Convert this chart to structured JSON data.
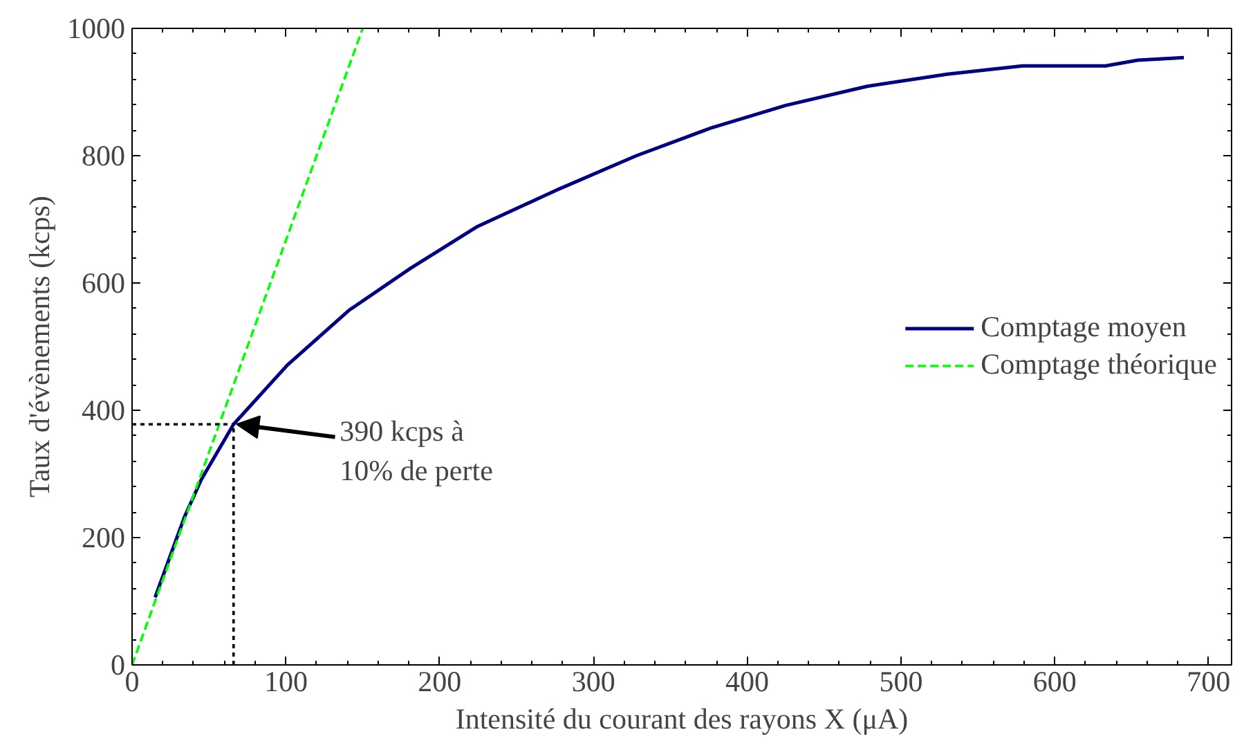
{
  "chart_data": {
    "type": "line",
    "xlabel": "Intensité du courant des rayons X (μA)",
    "ylabel": "Taux d'évènements (kcps)",
    "xlim": [
      0,
      715
    ],
    "ylim": [
      0,
      1000
    ],
    "xticks": [
      0,
      100,
      200,
      300,
      400,
      500,
      600,
      700
    ],
    "yticks": [
      0,
      200,
      400,
      600,
      800,
      1000
    ],
    "grid": false,
    "legend": "right",
    "marker": "none",
    "series": [
      {
        "name": "Comptage moyen",
        "color": "#000080",
        "line_style": "solid",
        "x": [
          15,
          34,
          45,
          66,
          101,
          141,
          181,
          224,
          278,
          328,
          377,
          425,
          478,
          530,
          579,
          633,
          654,
          684
        ],
        "values": [
          106,
          232,
          291,
          378,
          471,
          557,
          623,
          688,
          748,
          800,
          844,
          879,
          909,
          928,
          941,
          941,
          950,
          954
        ]
      },
      {
        "name": "Comptage théorique",
        "color": "#00ff00",
        "line_style": "dashed",
        "x": [
          0,
          150
        ],
        "values": [
          0,
          1000
        ]
      },
      {
        "color": "#000000",
        "line_style": "dotted",
        "x": [
          0,
          66
        ],
        "values": [
          378,
          378
        ]
      },
      {
        "color": "#000000",
        "line_style": "dotted",
        "x": [
          66,
          66
        ],
        "values": [
          0,
          378
        ]
      }
    ],
    "annotations": [
      {
        "text": "390 kcps à\n10% de perte",
        "x": 66,
        "y": 378
      }
    ]
  }
}
